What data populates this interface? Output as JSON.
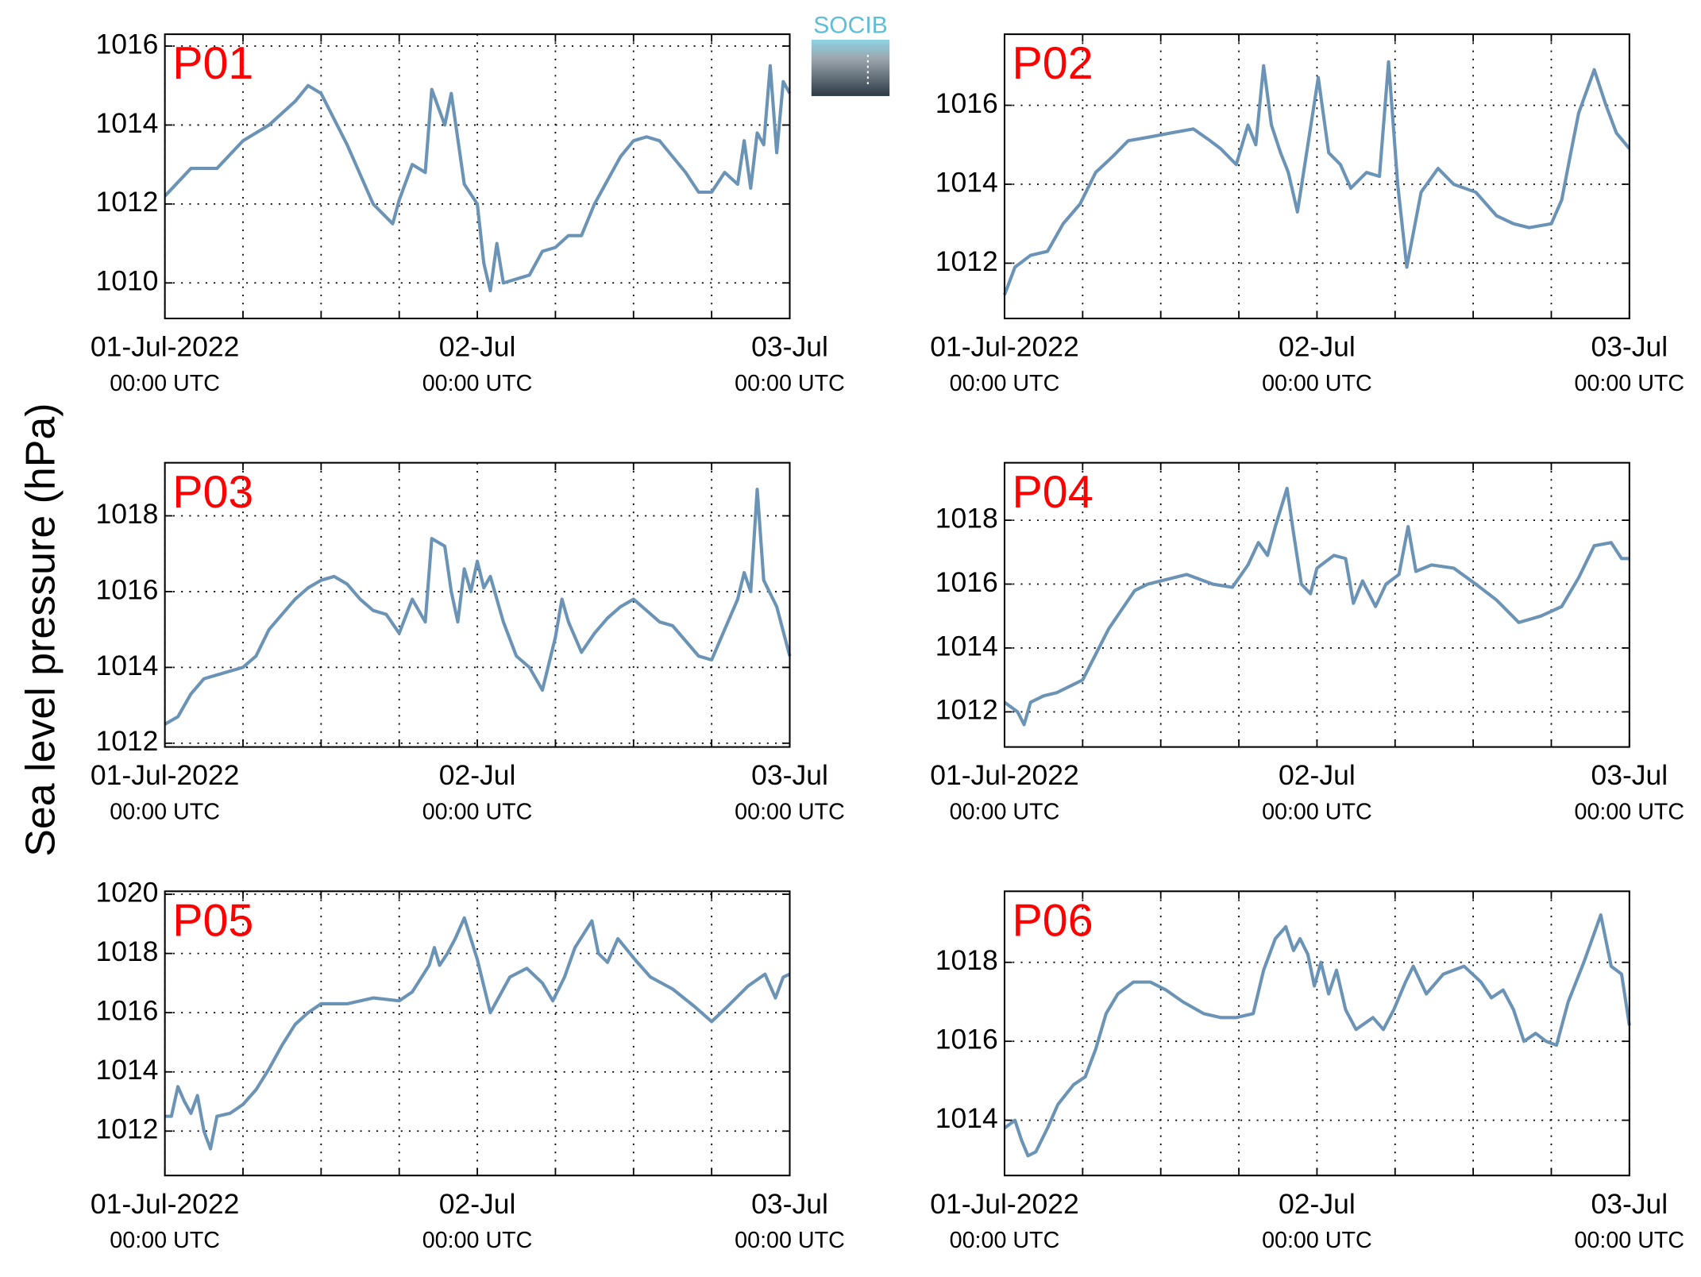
{
  "logo": "SOCIB",
  "ylabel": "Sea level pressure (hPa)",
  "chart_data": [
    {
      "type": "line",
      "title": "P01",
      "color": "#6a93b6",
      "x": [
        0,
        2,
        4,
        6,
        8,
        10,
        11,
        12,
        14,
        16,
        17.5,
        18,
        19,
        20,
        20.5,
        21.5,
        22,
        23,
        24,
        24.5,
        25,
        25.5,
        26,
        28,
        29,
        30,
        31,
        32,
        33,
        35,
        36,
        37,
        38,
        40,
        41,
        42,
        43,
        44,
        44.5,
        45,
        45.5,
        46,
        46.5,
        47,
        47.5,
        48
      ],
      "values": [
        1012.2,
        1012.9,
        1012.9,
        1013.6,
        1014.0,
        1014.6,
        1015.0,
        1014.8,
        1013.5,
        1012.0,
        1011.5,
        1012.1,
        1013.0,
        1012.8,
        1014.9,
        1014.0,
        1014.8,
        1012.5,
        1012.0,
        1010.5,
        1009.8,
        1011.0,
        1010.0,
        1010.2,
        1010.8,
        1010.9,
        1011.2,
        1011.2,
        1012.0,
        1013.2,
        1013.6,
        1013.7,
        1013.6,
        1012.8,
        1012.3,
        1012.3,
        1012.8,
        1012.5,
        1013.6,
        1012.4,
        1013.8,
        1013.5,
        1015.5,
        1013.3,
        1015.1,
        1014.8
      ],
      "xlim": [
        0,
        48
      ],
      "xticks": [
        {
          "value": 0,
          "label": [
            "01-Jul-2022",
            "00:00 UTC"
          ]
        },
        {
          "value": 24,
          "label": [
            "02-Jul",
            "00:00 UTC"
          ]
        },
        {
          "value": 48,
          "label": [
            "03-Jul",
            "00:00 UTC"
          ]
        }
      ],
      "xminor": [
        6,
        12,
        18,
        30,
        36,
        42
      ],
      "ylim": [
        1009.1,
        1016.3
      ],
      "yticks": [
        1010,
        1012,
        1014,
        1016
      ],
      "grid": true
    },
    {
      "type": "line",
      "title": "P02",
      "color": "#6a93b6",
      "x": [
        0,
        0.8,
        2,
        3.3,
        4.5,
        5.8,
        7,
        8.3,
        9.5,
        11.2,
        12.8,
        14.5,
        15.8,
        16.6,
        17.8,
        18.7,
        19.3,
        19.9,
        20.5,
        21.2,
        21.8,
        22.5,
        23.3,
        24.1,
        24.9,
        25.8,
        26.6,
        27.8,
        28.8,
        29.5,
        30.2,
        30.9,
        32,
        33.3,
        34.5,
        36.2,
        37.8,
        39.1,
        40.3,
        42,
        42.8,
        43.5,
        44.1,
        45.3,
        46.2,
        47,
        48
      ],
      "values": [
        1011.2,
        1011.9,
        1012.2,
        1012.3,
        1013.0,
        1013.5,
        1014.3,
        1014.7,
        1015.1,
        1015.2,
        1015.3,
        1015.4,
        1015.1,
        1014.9,
        1014.5,
        1015.5,
        1015.0,
        1017.0,
        1015.5,
        1014.8,
        1014.3,
        1013.3,
        1015.0,
        1016.7,
        1014.8,
        1014.5,
        1013.9,
        1014.3,
        1014.2,
        1017.1,
        1014.0,
        1011.9,
        1013.8,
        1014.4,
        1014.0,
        1013.8,
        1013.2,
        1013.0,
        1012.9,
        1013.0,
        1013.6,
        1014.8,
        1015.8,
        1016.9,
        1016.0,
        1015.3,
        1014.9
      ],
      "xlim": [
        0,
        48
      ],
      "xticks": [
        {
          "value": 0,
          "label": [
            "01-Jul-2022",
            "00:00 UTC"
          ]
        },
        {
          "value": 24,
          "label": [
            "02-Jul",
            "00:00 UTC"
          ]
        },
        {
          "value": 48,
          "label": [
            "03-Jul",
            "00:00 UTC"
          ]
        }
      ],
      "xminor": [
        6,
        12,
        18,
        30,
        36,
        42
      ],
      "ylim": [
        1010.6,
        1017.8
      ],
      "yticks": [
        1012,
        1014,
        1016
      ],
      "grid": true
    },
    {
      "type": "line",
      "title": "P03",
      "color": "#6a93b6",
      "x": [
        0,
        1,
        2,
        3,
        4,
        6,
        7,
        8,
        9,
        10,
        11,
        12,
        13,
        14,
        15,
        16,
        17,
        18,
        19,
        20,
        20.5,
        21.5,
        22,
        22.5,
        23,
        23.5,
        24,
        24.5,
        25,
        26,
        27,
        28,
        29,
        30,
        30.5,
        31,
        32,
        33,
        34,
        35,
        36,
        37,
        38,
        39,
        40,
        41,
        42,
        43,
        44,
        44.5,
        45,
        45.5,
        46,
        47,
        48
      ],
      "values": [
        1012.5,
        1012.7,
        1013.3,
        1013.7,
        1013.8,
        1014.0,
        1014.3,
        1015.0,
        1015.4,
        1015.8,
        1016.1,
        1016.3,
        1016.4,
        1016.2,
        1015.8,
        1015.5,
        1015.4,
        1014.9,
        1015.8,
        1015.2,
        1017.4,
        1017.2,
        1016.0,
        1015.2,
        1016.6,
        1016.0,
        1016.8,
        1016.1,
        1016.4,
        1015.2,
        1014.3,
        1014.0,
        1013.4,
        1014.8,
        1015.8,
        1015.2,
        1014.4,
        1014.9,
        1015.3,
        1015.6,
        1015.8,
        1015.5,
        1015.2,
        1015.1,
        1014.7,
        1014.3,
        1014.2,
        1015.0,
        1015.8,
        1016.5,
        1016.0,
        1018.7,
        1016.3,
        1015.6,
        1014.3
      ],
      "xlim": [
        0,
        48
      ],
      "xticks": [
        {
          "value": 0,
          "label": [
            "01-Jul-2022",
            "00:00 UTC"
          ]
        },
        {
          "value": 24,
          "label": [
            "02-Jul",
            "00:00 UTC"
          ]
        },
        {
          "value": 48,
          "label": [
            "03-Jul",
            "00:00 UTC"
          ]
        }
      ],
      "xminor": [
        6,
        12,
        18,
        30,
        36,
        42
      ],
      "ylim": [
        1011.9,
        1019.4
      ],
      "yticks": [
        1012,
        1014,
        1016,
        1018
      ],
      "grid": true
    },
    {
      "type": "line",
      "title": "P04",
      "color": "#6a93b6",
      "x": [
        0,
        1,
        1.5,
        2,
        3,
        4,
        5,
        6,
        7,
        8,
        9,
        10,
        11,
        12,
        14,
        16,
        17.5,
        18.7,
        19.5,
        20.2,
        20.8,
        21.7,
        22.2,
        22.8,
        23.5,
        24,
        25.3,
        26.2,
        26.8,
        27.5,
        28.5,
        29.3,
        30.3,
        31,
        31.6,
        32.8,
        34.5,
        36.2,
        37.8,
        39.5,
        41.2,
        42.8,
        44.1,
        45.3,
        46.6,
        47.4,
        48
      ],
      "values": [
        1012.3,
        1012.0,
        1011.6,
        1012.3,
        1012.5,
        1012.6,
        1012.8,
        1013.0,
        1013.8,
        1014.6,
        1015.2,
        1015.8,
        1016.0,
        1016.1,
        1016.3,
        1016.0,
        1015.9,
        1016.6,
        1017.3,
        1016.9,
        1017.8,
        1019.0,
        1017.6,
        1016.0,
        1015.7,
        1016.5,
        1016.9,
        1016.8,
        1015.4,
        1016.1,
        1015.3,
        1016.0,
        1016.3,
        1017.8,
        1016.4,
        1016.6,
        1016.5,
        1016.0,
        1015.5,
        1014.8,
        1015.0,
        1015.3,
        1016.2,
        1017.2,
        1017.3,
        1016.8,
        1016.8
      ],
      "xlim": [
        0,
        48
      ],
      "xticks": [
        {
          "value": 0,
          "label": [
            "01-Jul-2022",
            "00:00 UTC"
          ]
        },
        {
          "value": 24,
          "label": [
            "02-Jul",
            "00:00 UTC"
          ]
        },
        {
          "value": 48,
          "label": [
            "03-Jul",
            "00:00 UTC"
          ]
        }
      ],
      "xminor": [
        6,
        12,
        18,
        30,
        36,
        42
      ],
      "ylim": [
        1010.9,
        1019.8
      ],
      "yticks": [
        1012,
        1014,
        1016,
        1018
      ],
      "grid": true
    },
    {
      "type": "line",
      "title": "P05",
      "color": "#6a93b6",
      "x": [
        0,
        0.5,
        1,
        1.5,
        2,
        2.5,
        3,
        3.5,
        4,
        5,
        6,
        7,
        8,
        9,
        10,
        11,
        12,
        14,
        16,
        18,
        19,
        20.3,
        20.7,
        21.1,
        21.7,
        22.3,
        23,
        24,
        25,
        26.5,
        27.8,
        29,
        29.8,
        30.7,
        31.5,
        32.8,
        33.3,
        34,
        34.8,
        36.1,
        37.3,
        39,
        40.7,
        42,
        43.2,
        44.8,
        46.1,
        46.9,
        47.5,
        48
      ],
      "values": [
        1012.5,
        1012.5,
        1013.5,
        1013.0,
        1012.6,
        1013.2,
        1012.0,
        1011.4,
        1012.5,
        1012.6,
        1012.9,
        1013.4,
        1014.1,
        1014.9,
        1015.6,
        1016.0,
        1016.3,
        1016.3,
        1016.5,
        1016.4,
        1016.7,
        1017.6,
        1018.2,
        1017.6,
        1018.0,
        1018.5,
        1019.2,
        1017.8,
        1016.0,
        1017.2,
        1017.5,
        1017.0,
        1016.4,
        1017.2,
        1018.2,
        1019.1,
        1018.0,
        1017.7,
        1018.5,
        1017.8,
        1017.2,
        1016.8,
        1016.2,
        1015.7,
        1016.2,
        1016.9,
        1017.3,
        1016.5,
        1017.2,
        1017.3
      ],
      "xlim": [
        0,
        48
      ],
      "xticks": [
        {
          "value": 0,
          "label": [
            "01-Jul-2022",
            "00:00 UTC"
          ]
        },
        {
          "value": 24,
          "label": [
            "02-Jul",
            "00:00 UTC"
          ]
        },
        {
          "value": 48,
          "label": [
            "03-Jul",
            "00:00 UTC"
          ]
        }
      ],
      "xminor": [
        6,
        12,
        18,
        30,
        36,
        42
      ],
      "ylim": [
        1010.5,
        1020.1
      ],
      "yticks": [
        1012,
        1014,
        1016,
        1018,
        1020
      ],
      "grid": true
    },
    {
      "type": "line",
      "title": "P06",
      "color": "#6a93b6",
      "x": [
        0,
        0.8,
        1.3,
        1.8,
        2.4,
        3.3,
        4.1,
        5.3,
        6.2,
        7.0,
        7.8,
        8.7,
        9.9,
        11.2,
        12.4,
        13.7,
        15.3,
        16.6,
        17.8,
        19.1,
        19.9,
        20.8,
        21.6,
        22.2,
        22.7,
        23.3,
        23.8,
        24.3,
        24.9,
        25.5,
        26.2,
        27.0,
        28.3,
        29.1,
        29.9,
        30.8,
        31.4,
        32.4,
        33.7,
        35.3,
        36.6,
        37.4,
        38.3,
        39.1,
        39.9,
        40.8,
        41.6,
        42.4,
        43.3,
        44.5,
        45.8,
        46.6,
        47.4,
        48
      ],
      "values": [
        1013.8,
        1014.0,
        1013.5,
        1013.1,
        1013.2,
        1013.8,
        1014.4,
        1014.9,
        1015.1,
        1015.8,
        1016.7,
        1017.2,
        1017.5,
        1017.5,
        1017.3,
        1017.0,
        1016.7,
        1016.6,
        1016.6,
        1016.7,
        1017.8,
        1018.6,
        1018.9,
        1018.3,
        1018.6,
        1018.2,
        1017.4,
        1018.0,
        1017.2,
        1017.8,
        1016.8,
        1016.3,
        1016.6,
        1016.3,
        1016.8,
        1017.5,
        1017.9,
        1017.2,
        1017.7,
        1017.9,
        1017.5,
        1017.1,
        1017.3,
        1016.8,
        1016.0,
        1016.2,
        1016.0,
        1015.9,
        1017.0,
        1018.0,
        1019.2,
        1017.9,
        1017.7,
        1016.4
      ],
      "xlim": [
        0,
        48
      ],
      "xticks": [
        {
          "value": 0,
          "label": [
            "01-Jul-2022",
            "00:00 UTC"
          ]
        },
        {
          "value": 24,
          "label": [
            "02-Jul",
            "00:00 UTC"
          ]
        },
        {
          "value": 48,
          "label": [
            "03-Jul",
            "00:00 UTC"
          ]
        }
      ],
      "xminor": [
        6,
        12,
        18,
        30,
        36,
        42
      ],
      "ylim": [
        1012.6,
        1019.8
      ],
      "yticks": [
        1014,
        1016,
        1018
      ],
      "grid": true
    }
  ]
}
